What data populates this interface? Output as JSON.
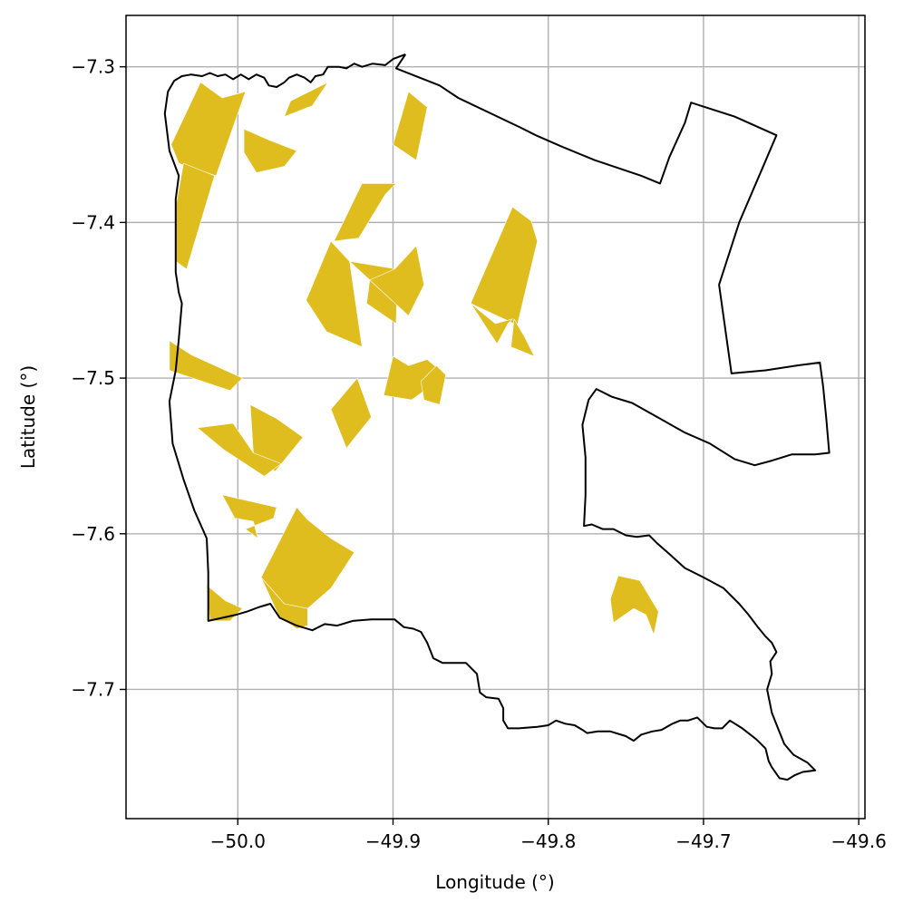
{
  "chart_data": {
    "type": "map",
    "title": "",
    "xlabel": "Longitude (°)",
    "ylabel": "Latitude (°)",
    "xlim": [
      -50.072,
      -49.596
    ],
    "ylim": [
      -7.783,
      -7.267
    ],
    "xticks": [
      -50.0,
      -49.9,
      -49.8,
      -49.7,
      -49.6
    ],
    "xtick_labels": [
      "−50.0",
      "−49.9",
      "−49.8",
      "−49.7",
      "−49.6"
    ],
    "yticks": [
      -7.3,
      -7.4,
      -7.5,
      -7.6,
      -7.7
    ],
    "ytick_labels": [
      "−7.3",
      "−7.4",
      "−7.5",
      "−7.6",
      "−7.7"
    ],
    "grid": true,
    "colors": {
      "boundary": "#000000",
      "parcel_fill": "#dfbd1f",
      "grid": "#b0b0b0"
    },
    "boundary": [
      [
        -49.892,
        -7.292
      ],
      [
        -49.9,
        -7.295
      ],
      [
        -49.905,
        -7.299
      ],
      [
        -49.913,
        -7.298
      ],
      [
        -49.92,
        -7.3
      ],
      [
        -49.925,
        -7.298
      ],
      [
        -49.93,
        -7.301
      ],
      [
        -49.935,
        -7.3
      ],
      [
        -49.942,
        -7.3
      ],
      [
        -49.945,
        -7.305
      ],
      [
        -49.95,
        -7.306
      ],
      [
        -49.953,
        -7.31
      ],
      [
        -49.957,
        -7.307
      ],
      [
        -49.962,
        -7.305
      ],
      [
        -49.967,
        -7.307
      ],
      [
        -49.97,
        -7.31
      ],
      [
        -49.975,
        -7.313
      ],
      [
        -49.98,
        -7.312
      ],
      [
        -49.983,
        -7.307
      ],
      [
        -49.988,
        -7.305
      ],
      [
        -49.993,
        -7.308
      ],
      [
        -49.998,
        -7.305
      ],
      [
        -50.003,
        -7.308
      ],
      [
        -50.008,
        -7.305
      ],
      [
        -50.013,
        -7.306
      ],
      [
        -50.018,
        -7.304
      ],
      [
        -50.023,
        -7.306
      ],
      [
        -50.03,
        -7.305
      ],
      [
        -50.036,
        -7.306
      ],
      [
        -50.041,
        -7.309
      ],
      [
        -50.045,
        -7.316
      ],
      [
        -50.047,
        -7.33
      ],
      [
        -50.044,
        -7.354
      ],
      [
        -50.038,
        -7.37
      ],
      [
        -50.04,
        -7.385
      ],
      [
        -50.04,
        -7.4
      ],
      [
        -50.04,
        -7.42
      ],
      [
        -50.04,
        -7.432
      ],
      [
        -50.038,
        -7.445
      ],
      [
        -50.036,
        -7.452
      ],
      [
        -50.038,
        -7.475
      ],
      [
        -50.04,
        -7.495
      ],
      [
        -50.044,
        -7.515
      ],
      [
        -50.042,
        -7.542
      ],
      [
        -50.035,
        -7.565
      ],
      [
        -50.028,
        -7.585
      ],
      [
        -50.02,
        -7.603
      ],
      [
        -50.019,
        -7.625
      ],
      [
        -50.019,
        -7.656
      ],
      [
        -50.01,
        -7.654
      ],
      [
        -50.001,
        -7.652
      ],
      [
        -49.994,
        -7.65
      ],
      [
        -49.986,
        -7.647
      ],
      [
        -49.979,
        -7.645
      ],
      [
        -49.973,
        -7.654
      ],
      [
        -49.962,
        -7.659
      ],
      [
        -49.952,
        -7.662
      ],
      [
        -49.944,
        -7.658
      ],
      [
        -49.936,
        -7.659
      ],
      [
        -49.926,
        -7.656
      ],
      [
        -49.914,
        -7.655
      ],
      [
        -49.905,
        -7.655
      ],
      [
        -49.899,
        -7.655
      ],
      [
        -49.893,
        -7.66
      ],
      [
        -49.887,
        -7.661
      ],
      [
        -49.882,
        -7.663
      ],
      [
        -49.878,
        -7.67
      ],
      [
        -49.874,
        -7.68
      ],
      [
        -49.868,
        -7.683
      ],
      [
        -49.86,
        -7.683
      ],
      [
        -49.853,
        -7.683
      ],
      [
        -49.846,
        -7.69
      ],
      [
        -49.844,
        -7.702
      ],
      [
        -49.84,
        -7.705
      ],
      [
        -49.832,
        -7.706
      ],
      [
        -49.829,
        -7.712
      ],
      [
        -49.829,
        -7.72
      ],
      [
        -49.826,
        -7.725
      ],
      [
        -49.819,
        -7.725
      ],
      [
        -49.807,
        -7.724
      ],
      [
        -49.8,
        -7.723
      ],
      [
        -49.795,
        -7.72
      ],
      [
        -49.789,
        -7.722
      ],
      [
        -49.783,
        -7.723
      ],
      [
        -49.778,
        -7.726
      ],
      [
        -49.775,
        -7.728
      ],
      [
        -49.768,
        -7.727
      ],
      [
        -49.76,
        -7.727
      ],
      [
        -49.75,
        -7.73
      ],
      [
        -49.745,
        -7.733
      ],
      [
        -49.74,
        -7.729
      ],
      [
        -49.733,
        -7.727
      ],
      [
        -49.727,
        -7.726
      ],
      [
        -49.72,
        -7.722
      ],
      [
        -49.715,
        -7.72
      ],
      [
        -49.71,
        -7.72
      ],
      [
        -49.704,
        -7.718
      ],
      [
        -49.698,
        -7.724
      ],
      [
        -49.693,
        -7.725
      ],
      [
        -49.688,
        -7.725
      ],
      [
        -49.683,
        -7.72
      ],
      [
        -49.675,
        -7.725
      ],
      [
        -49.666,
        -7.732
      ],
      [
        -49.66,
        -7.738
      ],
      [
        -49.658,
        -7.746
      ],
      [
        -49.656,
        -7.75
      ],
      [
        -49.651,
        -7.757
      ],
      [
        -49.646,
        -7.758
      ],
      [
        -49.641,
        -7.755
      ],
      [
        -49.636,
        -7.753
      ],
      [
        -49.628,
        -7.752
      ],
      [
        -49.633,
        -7.747
      ],
      [
        -49.642,
        -7.742
      ],
      [
        -49.648,
        -7.735
      ],
      [
        -49.652,
        -7.725
      ],
      [
        -49.656,
        -7.715
      ],
      [
        -49.659,
        -7.7
      ],
      [
        -49.656,
        -7.69
      ],
      [
        -49.657,
        -7.682
      ],
      [
        -49.653,
        -7.676
      ],
      [
        -49.656,
        -7.67
      ],
      [
        -49.66,
        -7.666
      ],
      [
        -49.665,
        -7.66
      ],
      [
        -49.671,
        -7.652
      ],
      [
        -49.677,
        -7.645
      ],
      [
        -49.687,
        -7.635
      ],
      [
        -49.7,
        -7.628
      ],
      [
        -49.712,
        -7.622
      ],
      [
        -49.722,
        -7.613
      ],
      [
        -49.73,
        -7.606
      ],
      [
        -49.735,
        -7.601
      ],
      [
        -49.743,
        -7.602
      ],
      [
        -49.75,
        -7.601
      ],
      [
        -49.758,
        -7.597
      ],
      [
        -49.765,
        -7.597
      ],
      [
        -49.772,
        -7.594
      ],
      [
        -49.777,
        -7.595
      ],
      [
        -49.776,
        -7.575
      ],
      [
        -49.776,
        -7.551
      ],
      [
        -49.778,
        -7.53
      ],
      [
        -49.774,
        -7.514
      ],
      [
        -49.769,
        -7.507
      ],
      [
        -49.759,
        -7.512
      ],
      [
        -49.746,
        -7.516
      ],
      [
        -49.728,
        -7.526
      ],
      [
        -49.712,
        -7.535
      ],
      [
        -49.696,
        -7.542
      ],
      [
        -49.68,
        -7.552
      ],
      [
        -49.667,
        -7.556
      ],
      [
        -49.656,
        -7.553
      ],
      [
        -49.643,
        -7.549
      ],
      [
        -49.628,
        -7.549
      ],
      [
        -49.619,
        -7.548
      ],
      [
        -49.621,
        -7.525
      ],
      [
        -49.623,
        -7.505
      ],
      [
        -49.625,
        -7.49
      ],
      [
        -49.64,
        -7.492
      ],
      [
        -49.66,
        -7.495
      ],
      [
        -49.682,
        -7.497
      ],
      [
        -49.69,
        -7.44
      ],
      [
        -49.677,
        -7.4
      ],
      [
        -49.662,
        -7.365
      ],
      [
        -49.653,
        -7.344
      ],
      [
        -49.68,
        -7.332
      ],
      [
        -49.708,
        -7.323
      ],
      [
        -49.712,
        -7.336
      ],
      [
        -49.722,
        -7.358
      ],
      [
        -49.728,
        -7.375
      ],
      [
        -49.74,
        -7.37
      ],
      [
        -49.77,
        -7.36
      ],
      [
        -49.792,
        -7.351
      ],
      [
        -49.808,
        -7.344
      ],
      [
        -49.818,
        -7.339
      ],
      [
        -49.858,
        -7.32
      ],
      [
        -49.87,
        -7.312
      ],
      [
        -49.898,
        -7.301
      ],
      [
        -49.892,
        -7.292
      ]
    ],
    "parcels": [
      [
        [
          -50.024,
          -7.31
        ],
        [
          -50.01,
          -7.32
        ],
        [
          -49.995,
          -7.316
        ],
        [
          -50.014,
          -7.37
        ],
        [
          -50.038,
          -7.362
        ],
        [
          -50.043,
          -7.35
        ]
      ],
      [
        [
          -50.035,
          -7.362
        ],
        [
          -50.015,
          -7.37
        ],
        [
          -50.033,
          -7.43
        ],
        [
          -50.04,
          -7.425
        ],
        [
          -50.04,
          -7.39
        ]
      ],
      [
        [
          -49.996,
          -7.355
        ],
        [
          -49.988,
          -7.368
        ],
        [
          -49.97,
          -7.364
        ],
        [
          -49.962,
          -7.354
        ],
        [
          -49.98,
          -7.347
        ],
        [
          -49.996,
          -7.34
        ]
      ],
      [
        [
          -49.966,
          -7.322
        ],
        [
          -49.942,
          -7.31
        ],
        [
          -49.952,
          -7.325
        ],
        [
          -49.97,
          -7.332
        ]
      ],
      [
        [
          -49.89,
          -7.316
        ],
        [
          -49.878,
          -7.326
        ],
        [
          -49.885,
          -7.36
        ],
        [
          -49.9,
          -7.35
        ]
      ],
      [
        [
          -49.905,
          -7.382
        ],
        [
          -49.922,
          -7.41
        ],
        [
          -49.938,
          -7.412
        ],
        [
          -49.92,
          -7.375
        ],
        [
          -49.898,
          -7.375
        ]
      ],
      [
        [
          -49.94,
          -7.412
        ],
        [
          -49.928,
          -7.425
        ],
        [
          -49.92,
          -7.48
        ],
        [
          -49.943,
          -7.47
        ],
        [
          -49.956,
          -7.45
        ]
      ],
      [
        [
          -49.928,
          -7.425
        ],
        [
          -49.915,
          -7.437
        ],
        [
          -49.917,
          -7.452
        ],
        [
          -49.898,
          -7.465
        ],
        [
          -49.897,
          -7.43
        ]
      ],
      [
        [
          -49.915,
          -7.437
        ],
        [
          -49.899,
          -7.43
        ],
        [
          -49.885,
          -7.415
        ],
        [
          -49.88,
          -7.44
        ],
        [
          -49.89,
          -7.46
        ]
      ],
      [
        [
          -49.823,
          -7.39
        ],
        [
          -49.811,
          -7.399
        ],
        [
          -49.807,
          -7.412
        ],
        [
          -49.82,
          -7.466
        ],
        [
          -49.85,
          -7.452
        ]
      ],
      [
        [
          -49.85,
          -7.452
        ],
        [
          -49.834,
          -7.465
        ],
        [
          -49.823,
          -7.462
        ],
        [
          -49.826,
          -7.465
        ],
        [
          -49.833,
          -7.478
        ]
      ],
      [
        [
          -49.822,
          -7.462
        ],
        [
          -49.815,
          -7.474
        ],
        [
          -49.809,
          -7.486
        ],
        [
          -49.824,
          -7.48
        ]
      ],
      [
        [
          -49.9,
          -7.486
        ],
        [
          -49.89,
          -7.492
        ],
        [
          -49.878,
          -7.488
        ],
        [
          -49.866,
          -7.498
        ],
        [
          -49.888,
          -7.514
        ],
        [
          -49.906,
          -7.511
        ]
      ],
      [
        [
          -49.866,
          -7.498
        ],
        [
          -49.872,
          -7.492
        ],
        [
          -49.882,
          -7.502
        ],
        [
          -49.88,
          -7.514
        ],
        [
          -49.87,
          -7.517
        ]
      ],
      [
        [
          -49.923,
          -7.5
        ],
        [
          -49.914,
          -7.525
        ],
        [
          -49.93,
          -7.545
        ],
        [
          -49.94,
          -7.52
        ]
      ],
      [
        [
          -50.044,
          -7.476
        ],
        [
          -50.03,
          -7.485
        ],
        [
          -49.997,
          -7.5
        ],
        [
          -50.005,
          -7.508
        ],
        [
          -50.044,
          -7.495
        ]
      ],
      [
        [
          -49.992,
          -7.517
        ],
        [
          -49.975,
          -7.526
        ],
        [
          -49.958,
          -7.538
        ],
        [
          -49.976,
          -7.56
        ],
        [
          -49.99,
          -7.548
        ]
      ],
      [
        [
          -50.003,
          -7.529
        ],
        [
          -49.99,
          -7.548
        ],
        [
          -49.972,
          -7.555
        ],
        [
          -49.983,
          -7.563
        ],
        [
          -50.009,
          -7.546
        ],
        [
          -50.026,
          -7.532
        ]
      ],
      [
        [
          -50.01,
          -7.575
        ],
        [
          -50.002,
          -7.59
        ],
        [
          -49.99,
          -7.592
        ],
        [
          -49.987,
          -7.603
        ],
        [
          -49.995,
          -7.597
        ],
        [
          -49.977,
          -7.59
        ],
        [
          -49.975,
          -7.583
        ]
      ],
      [
        [
          -49.962,
          -7.583
        ],
        [
          -49.955,
          -7.591
        ],
        [
          -49.94,
          -7.603
        ],
        [
          -49.925,
          -7.612
        ],
        [
          -49.94,
          -7.635
        ],
        [
          -49.955,
          -7.648
        ],
        [
          -49.97,
          -7.645
        ],
        [
          -49.985,
          -7.628
        ]
      ],
      [
        [
          -49.985,
          -7.628
        ],
        [
          -49.97,
          -7.645
        ],
        [
          -49.955,
          -7.648
        ],
        [
          -49.955,
          -7.659
        ],
        [
          -49.962,
          -7.661
        ],
        [
          -49.973,
          -7.654
        ]
      ],
      [
        [
          -50.02,
          -7.633
        ],
        [
          -50.008,
          -7.643
        ],
        [
          -49.997,
          -7.648
        ],
        [
          -50.005,
          -7.656
        ],
        [
          -50.018,
          -7.656
        ]
      ],
      [
        [
          -49.755,
          -7.627
        ],
        [
          -49.741,
          -7.63
        ],
        [
          -49.729,
          -7.65
        ],
        [
          -49.732,
          -7.665
        ],
        [
          -49.737,
          -7.652
        ],
        [
          -49.745,
          -7.648
        ],
        [
          -49.758,
          -7.657
        ],
        [
          -49.76,
          -7.642
        ]
      ]
    ]
  }
}
